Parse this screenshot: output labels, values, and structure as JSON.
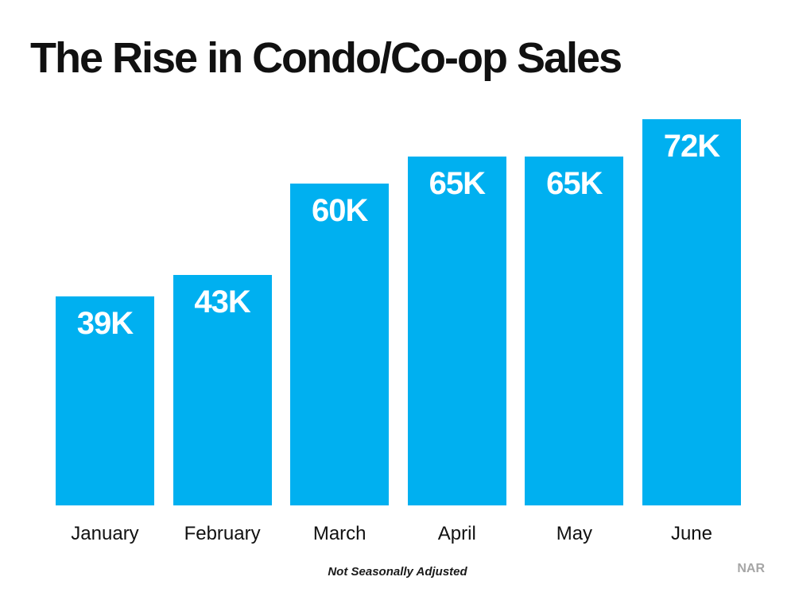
{
  "title": "The Rise in Condo/Co-op Sales",
  "footnote": "Not Seasonally Adjusted",
  "source": "NAR",
  "colors": {
    "bar": "#00B0F0",
    "bar_label": "#FFFFFF",
    "title_text": "#111111",
    "source_text": "#A6A6A6"
  },
  "chart_data": {
    "type": "bar",
    "title": "The Rise in Condo/Co-op Sales",
    "categories": [
      "January",
      "February",
      "March",
      "April",
      "May",
      "June"
    ],
    "values": [
      39,
      43,
      60,
      65,
      65,
      72
    ],
    "value_labels": [
      "39K",
      "43K",
      "60K",
      "65K",
      "65K",
      "72K"
    ],
    "unit": "thousands of sales (K)",
    "xlabel": "",
    "ylabel": "",
    "ylim": [
      0,
      72
    ],
    "grid": false,
    "legend": false,
    "axes_visible": false,
    "bar_color": "#00B0F0",
    "annotations": [
      "Not Seasonally Adjusted",
      "NAR"
    ]
  }
}
